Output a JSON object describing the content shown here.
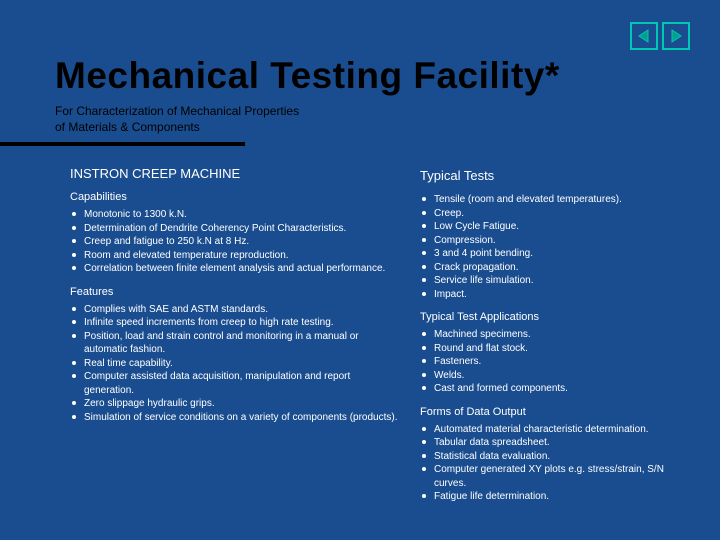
{
  "colors": {
    "background": "#1a4d8f",
    "title": "#000000",
    "body_text": "#ffffff",
    "nav_border": "#00c8b4",
    "nav_fill": "#00a090"
  },
  "title": "Mechanical Testing Facility*",
  "subtitle_line1": "For Characterization of Mechanical Properties",
  "subtitle_line2": "of Materials & Components",
  "left": {
    "heading": "INSTRON CREEP MACHINE",
    "sec1_label": "Capabilities",
    "sec1_items": [
      "Monotonic to 1300 k.N.",
      "Determination of Dendrite Coherency Point Characteristics.",
      "Creep and fatigue to 250 k.N at 8 Hz.",
      "Room and elevated temperature reproduction.",
      "Correlation between finite element analysis and actual performance."
    ],
    "sec2_label": "Features",
    "sec2_items": [
      "Complies with SAE and ASTM standards.",
      "Infinite speed increments from creep to high rate testing.",
      "Position, load and strain control and monitoring in a manual or automatic fashion.",
      "Real time capability.",
      "Computer assisted data acquisition, manipulation and report generation.",
      "Zero slippage hydraulic grips.",
      "Simulation of service conditions on a variety of components (products)."
    ]
  },
  "right": {
    "sec1_label": "Typical Tests",
    "sec1_items": [
      "Tensile (room and elevated temperatures).",
      "Creep.",
      "Low Cycle Fatigue.",
      "Compression.",
      "3 and 4 point bending.",
      "Crack propagation.",
      "Service life simulation.",
      "Impact."
    ],
    "sec2_label": "Typical Test Applications",
    "sec2_items": [
      "Machined specimens.",
      "Round and flat stock.",
      "Fasteners.",
      "Welds.",
      "Cast and formed components."
    ],
    "sec3_label": "Forms of Data Output",
    "sec3_items": [
      "Automated material characteristic determination.",
      "Tabular data spreadsheet.",
      "Statistical data evaluation.",
      "Computer generated XY plots e.g. stress/strain, S/N curves.",
      "Fatigue life determination."
    ]
  }
}
